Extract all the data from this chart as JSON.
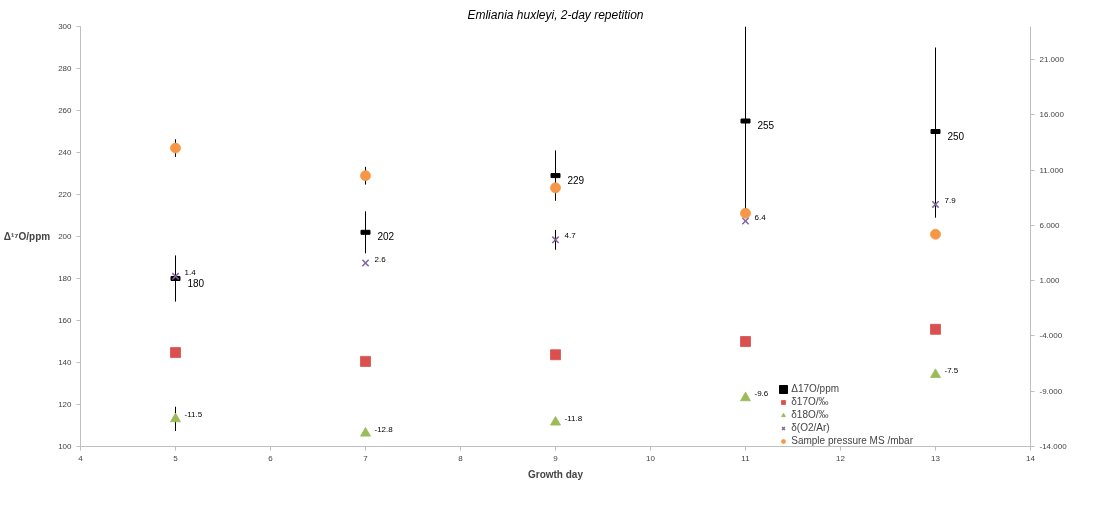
{
  "chart_data": {
    "type": "scatter",
    "title": "Emliania huxleyi, 2-day repetition",
    "xlabel": "Growth day",
    "ylabel": "Δ¹⁷O/ppm",
    "x": [
      5,
      7,
      9,
      11,
      13
    ],
    "xlim": [
      4,
      14
    ],
    "xticks": [
      4,
      5,
      6,
      7,
      8,
      9,
      10,
      11,
      12,
      13,
      14
    ],
    "ylim": [
      100,
      300
    ],
    "yticks": [
      100,
      120,
      140,
      160,
      180,
      200,
      220,
      240,
      260,
      280,
      300
    ],
    "y2lim": [
      -14,
      24
    ],
    "y2ticks": [
      {
        "value": -14,
        "label": "-14.000"
      },
      {
        "value": -9,
        "label": "-9.000"
      },
      {
        "value": -4,
        "label": "-4.000"
      },
      {
        "value": 1,
        "label": "1.000"
      },
      {
        "value": 6,
        "label": "6.000"
      },
      {
        "value": 11,
        "label": "11.000"
      },
      {
        "value": 16,
        "label": "16.000"
      },
      {
        "value": 21,
        "label": "21.000"
      }
    ],
    "grid": false,
    "legend": "bottom right",
    "series": [
      {
        "name": "Δ17O/ppm",
        "color": "#000000",
        "marker": "square",
        "values": [
          180,
          202,
          229,
          255,
          250
        ],
        "errors": [
          11,
          10,
          12,
          45,
          40
        ],
        "value_labels": [
          "180",
          "202",
          "229",
          "255",
          "250"
        ]
      },
      {
        "name": "δ17O/‰",
        "color": "#d9504f",
        "marker": "square",
        "axis": "y2",
        "values": [
          -5.5,
          -6.3,
          -5.7,
          -4.5,
          -3.4
        ]
      },
      {
        "name": "δ18O/‰",
        "color": "#9bbb59",
        "marker": "triangle",
        "axis": "y2",
        "values": [
          -11.5,
          -12.8,
          -11.8,
          -9.6,
          -7.5
        ],
        "errors": [
          1.1,
          null,
          null,
          null,
          null
        ],
        "value_labels": [
          "-11.5",
          "-12.8",
          "-11.8",
          "-9.6",
          "-7.5"
        ]
      },
      {
        "name": "δ(O2/Ar)",
        "color": "#8064a2",
        "marker": "x",
        "axis": "y2",
        "values": [
          1.4,
          2.6,
          4.7,
          6.4,
          7.9
        ],
        "errors": [
          null,
          null,
          0.9,
          null,
          1.2
        ],
        "value_labels": [
          "1.4",
          "2.6",
          "4.7",
          "6.4",
          "7.9"
        ]
      },
      {
        "name": "Sample pressure MS /mbar",
        "color": "#f79646",
        "marker": "circle",
        "axis": "y2",
        "values": [
          13.0,
          10.5,
          9.4,
          7.1,
          5.2
        ],
        "errors": [
          0.8,
          0.8,
          null,
          null,
          null
        ]
      }
    ]
  }
}
